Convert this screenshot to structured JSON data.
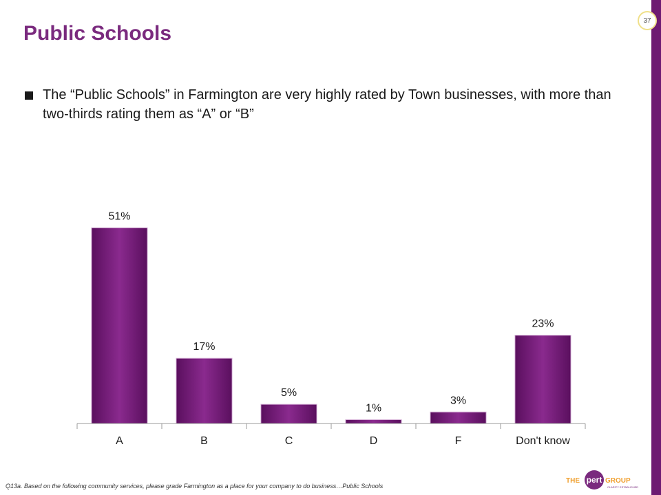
{
  "slide": {
    "page_number": "37"
  },
  "header": {
    "title": "Public Schools"
  },
  "bullets": [
    "The “Public Schools” in Farmington are very highly rated by Town businesses, with more than two-thirds rating them as “A” or “B”"
  ],
  "chart_data": {
    "type": "bar",
    "categories": [
      "A",
      "B",
      "C",
      "D",
      "F",
      "Don't know"
    ],
    "values": [
      51,
      17,
      5,
      1,
      3,
      23
    ],
    "data_labels": [
      "51%",
      "17%",
      "5%",
      "1%",
      "3%",
      "23%"
    ],
    "title": "",
    "xlabel": "",
    "ylabel": "",
    "ylim": [
      0,
      55
    ],
    "grid": false,
    "legend": "none",
    "bar_color": "#7b1e7e"
  },
  "footnote": "Q13a. Based on the following community services, please grade Farmington as a place for your company to do business…Public Schools",
  "logo": {
    "the": "THE",
    "pert": "pert",
    "group": "GROUP",
    "tagline": "CLARITY ESTABLISHED"
  },
  "colors": {
    "accent": "#7a2a7e",
    "side_bar": "#6e1a72"
  }
}
